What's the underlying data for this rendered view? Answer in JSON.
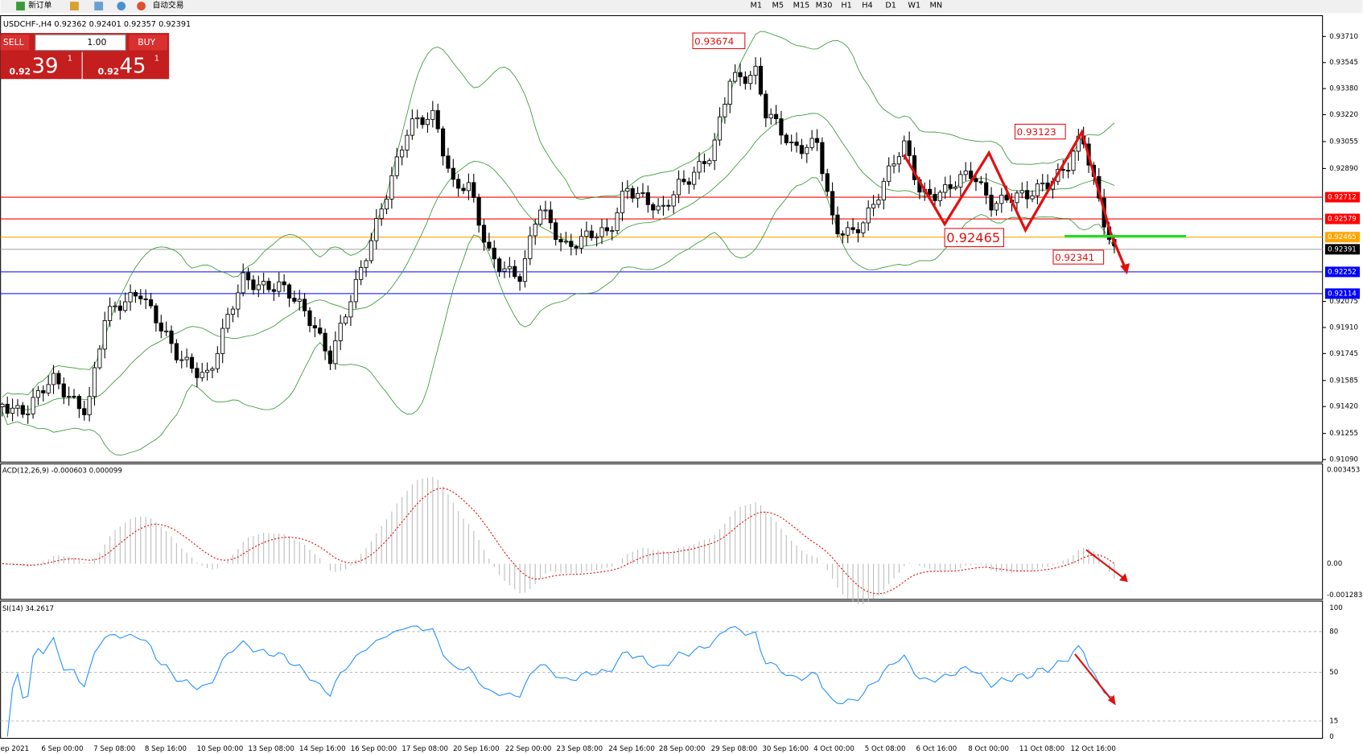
{
  "toolbar": {
    "new_order": "新订单",
    "auto_trading": "自动交易",
    "timeframes": [
      "M1",
      "M5",
      "M15",
      "M30",
      "H1",
      "H4",
      "D1",
      "W1",
      "MN"
    ]
  },
  "symbol_header": "USDCHF-,H4  0.92362 0.92401 0.92357 0.92391",
  "trade_panel": {
    "sell": "SELL",
    "buy": "BUY",
    "lot": "1.00",
    "sell_big": "0.92",
    "sell_pips": "39",
    "sell_frac": "1",
    "buy_big": "0.92",
    "buy_pips": "45",
    "buy_frac": "1"
  },
  "price_axis": [
    "0.93710",
    "0.93545",
    "0.93380",
    "0.93220",
    "0.93055",
    "0.92890",
    "0.92075",
    "0.91910",
    "0.91745",
    "0.91585",
    "0.91420",
    "0.91255",
    "0.91090"
  ],
  "levels": [
    {
      "label": "0.92712",
      "color": "#ff0000"
    },
    {
      "label": "0.92579",
      "color": "#ff0000"
    },
    {
      "label": "0.92465",
      "color": "#ffa500"
    },
    {
      "label": "0.92391",
      "color": "#000000"
    },
    {
      "label": "0.92252",
      "color": "#0000ff"
    },
    {
      "label": "0.92114",
      "color": "#0000ff"
    }
  ],
  "annotations": [
    "0.93674",
    "0.93123",
    "0.92465",
    "0.92341"
  ],
  "macd": {
    "header": "ACD(12,26,9) -0.000603 0.000099",
    "axis": [
      "0.003453",
      "0.00",
      "-0.001283"
    ]
  },
  "rsi": {
    "header": "SI(14) 34.2617",
    "axis": [
      "100",
      "80",
      "50",
      "15",
      "0"
    ]
  },
  "time_axis": [
    "ep 2021",
    "6 Sep 00:00",
    "7 Sep 08:00",
    "8 Sep 16:00",
    "10 Sep 00:00",
    "13 Sep 08:00",
    "14 Sep 16:00",
    "16 Sep 00:00",
    "17 Sep 08:00",
    "20 Sep 16:00",
    "22 Sep 00:00",
    "23 Sep 08:00",
    "24 Sep 16:00",
    "28 Sep 00:00",
    "29 Sep 08:00",
    "30 Sep 16:00",
    "4 Oct 00:00",
    "5 Oct 08:00",
    "6 Oct 16:00",
    "8 Oct 00:00",
    "11 Oct 08:00",
    "12 Oct 16:00"
  ]
}
